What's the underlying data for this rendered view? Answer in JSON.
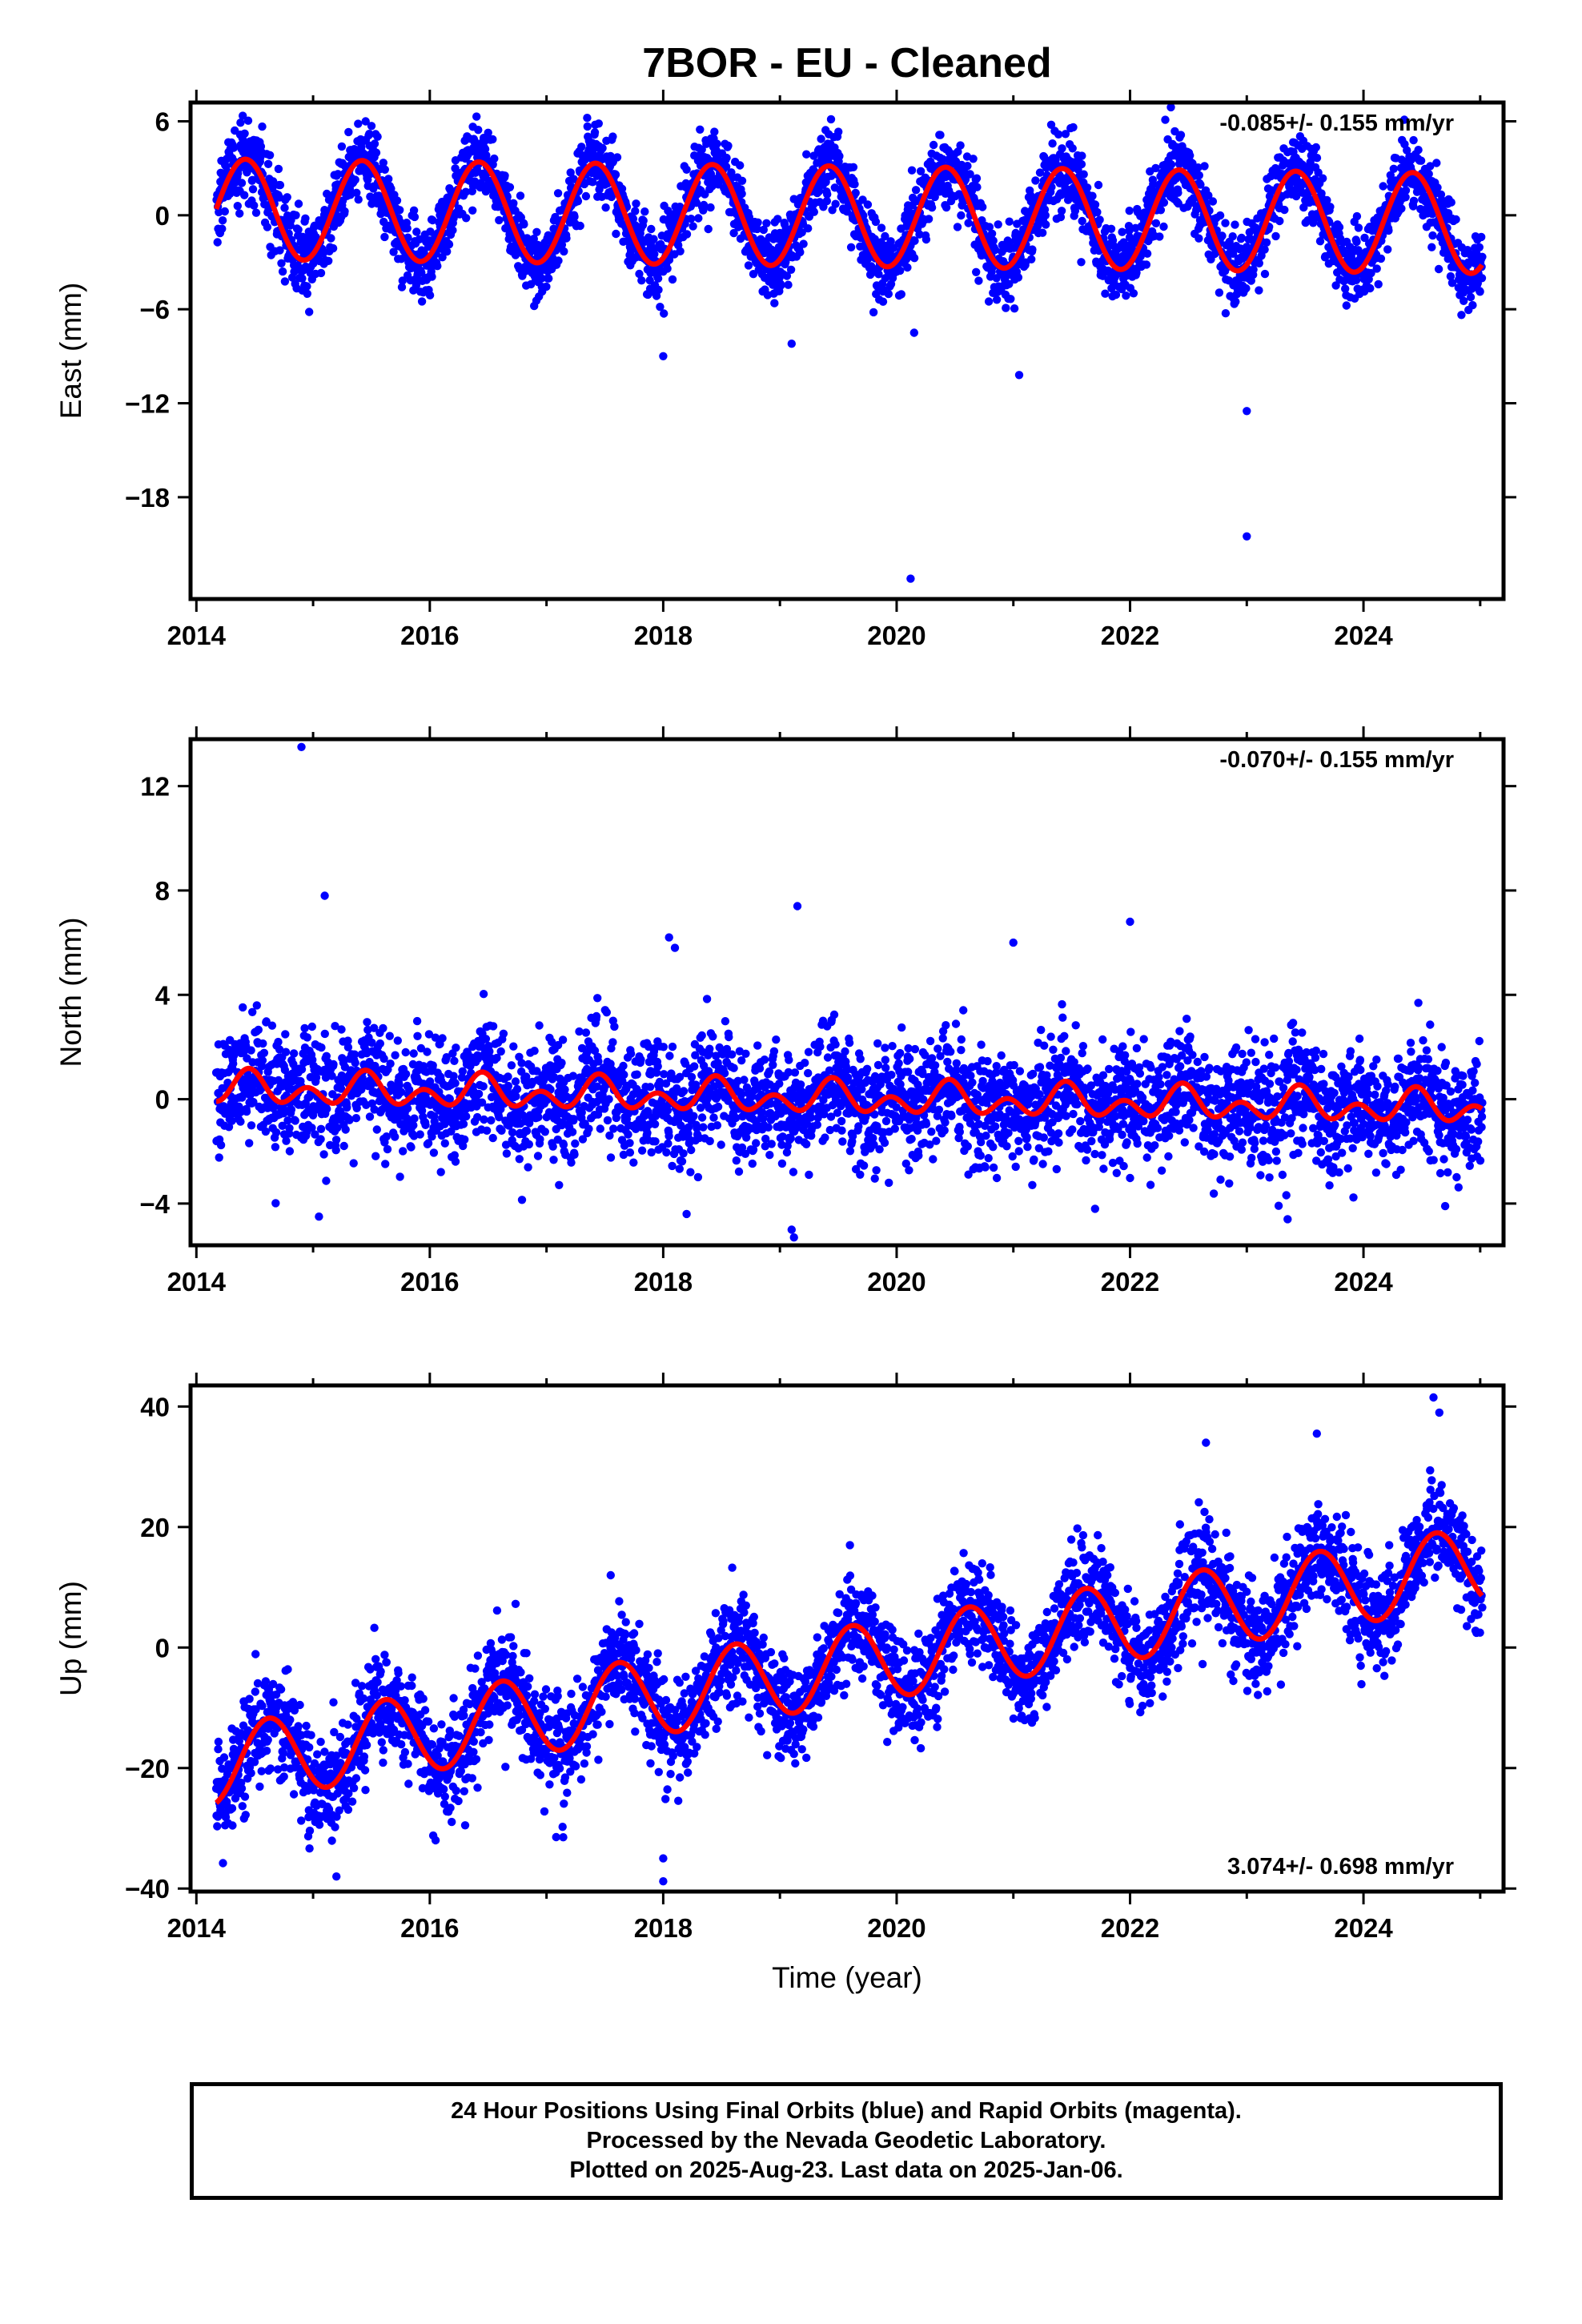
{
  "title": "7BOR  - EU - Cleaned",
  "xlabel": "Time (year)",
  "footer": {
    "line1": "24 Hour Positions Using Final Orbits (blue) and Rapid Orbits (magenta).",
    "line2": "Processed by the Nevada Geodetic Laboratory.",
    "line3": "Plotted on 2025-Aug-23. Last data on 2025-Jan-06."
  },
  "colors": {
    "points": "#0000ff",
    "model": "#ff0000",
    "frame": "#000000"
  },
  "chart_data": [
    {
      "type": "scatter",
      "component": "east",
      "ylabel": "East (mm)",
      "rate_text": "-0.085+/- 0.155 mm/yr",
      "rate_position": "top-right",
      "xlim": [
        2013.95,
        2025.2
      ],
      "ylim": [
        -24.5,
        7.2
      ],
      "xticks": [
        2014,
        2016,
        2018,
        2020,
        2022,
        2024
      ],
      "yticks": [
        6,
        0,
        -6,
        -12,
        -18
      ],
      "series": [
        {
          "kind": "points",
          "data_start": 2014.17,
          "data_end": 2025.02,
          "model": {
            "offset": 0.4,
            "slope": -0.085,
            "annual_amplitude": 3.2,
            "annual_peak": 0.42,
            "semiannual_amplitude": 0.0,
            "semiannual_peak": 0.0
          },
          "noise_sd": 1.2,
          "outliers": [
            [
              2018.0,
              -9.0
            ],
            [
              2020.15,
              -7.5
            ],
            [
              2021.05,
              -10.2
            ],
            [
              2023.0,
              -12.5
            ],
            [
              2023.0,
              -20.5
            ],
            [
              2020.12,
              -23.2
            ],
            [
              2019.1,
              -8.2
            ],
            [
              2022.35,
              6.9
            ],
            [
              2024.35,
              6.1
            ],
            [
              2015.45,
              6.0
            ],
            [
              2016.4,
              6.3
            ]
          ]
        }
      ]
    },
    {
      "type": "scatter",
      "component": "north",
      "ylabel": "North (mm)",
      "rate_text": "-0.070+/- 0.155 mm/yr",
      "rate_position": "top-right",
      "xlim": [
        2013.95,
        2025.2
      ],
      "ylim": [
        -5.6,
        13.8
      ],
      "xticks": [
        2014,
        2016,
        2018,
        2020,
        2022,
        2024
      ],
      "yticks": [
        12,
        8,
        4,
        0,
        -4
      ],
      "series": [
        {
          "kind": "points",
          "data_start": 2014.17,
          "data_end": 2025.02,
          "model": {
            "offset": 0.4,
            "slope": -0.07,
            "annual_amplitude": 0.35,
            "annual_peak": 0.45,
            "semiannual_amplitude": 0.45,
            "semiannual_peak": 0.45
          },
          "noise_sd": 1.1,
          "outliers": [
            [
              2014.9,
              13.5
            ],
            [
              2015.1,
              7.8
            ],
            [
              2018.05,
              6.2
            ],
            [
              2018.1,
              5.8
            ],
            [
              2019.15,
              7.4
            ],
            [
              2021.0,
              6.0
            ],
            [
              2022.0,
              6.8
            ],
            [
              2015.05,
              -4.5
            ],
            [
              2018.2,
              -4.4
            ],
            [
              2019.1,
              -5.0
            ],
            [
              2019.12,
              -5.3
            ],
            [
              2021.7,
              -4.2
            ],
            [
              2023.35,
              -4.6
            ],
            [
              2024.7,
              -4.1
            ]
          ]
        }
      ]
    },
    {
      "type": "scatter",
      "component": "up",
      "ylabel": "Up (mm)",
      "rate_text": "3.074+/- 0.698 mm/yr",
      "rate_position": "bottom-right",
      "xlim": [
        2013.95,
        2025.2
      ],
      "ylim": [
        -40.5,
        43.5
      ],
      "xticks": [
        2014,
        2016,
        2018,
        2020,
        2022,
        2024
      ],
      "yticks": [
        40,
        20,
        0,
        -20,
        -40
      ],
      "series": [
        {
          "kind": "points",
          "data_start": 2014.17,
          "data_end": 2025.02,
          "model": {
            "offset": -19.6,
            "slope": 3.074,
            "annual_amplitude": 6.5,
            "annual_peak": 0.62,
            "semiannual_amplitude": 0.0,
            "semiannual_peak": 0.0
          },
          "noise_sd": 4.2,
          "outliers": [
            [
              2018.0,
              -35.0
            ],
            [
              2018.0,
              -38.8
            ],
            [
              2015.2,
              -38.0
            ],
            [
              2024.6,
              41.5
            ],
            [
              2024.65,
              39.0
            ],
            [
              2016.05,
              -32.0
            ],
            [
              2017.55,
              12.0
            ],
            [
              2019.6,
              17.0
            ],
            [
              2022.65,
              34.0
            ],
            [
              2023.6,
              35.5
            ]
          ]
        }
      ]
    }
  ]
}
